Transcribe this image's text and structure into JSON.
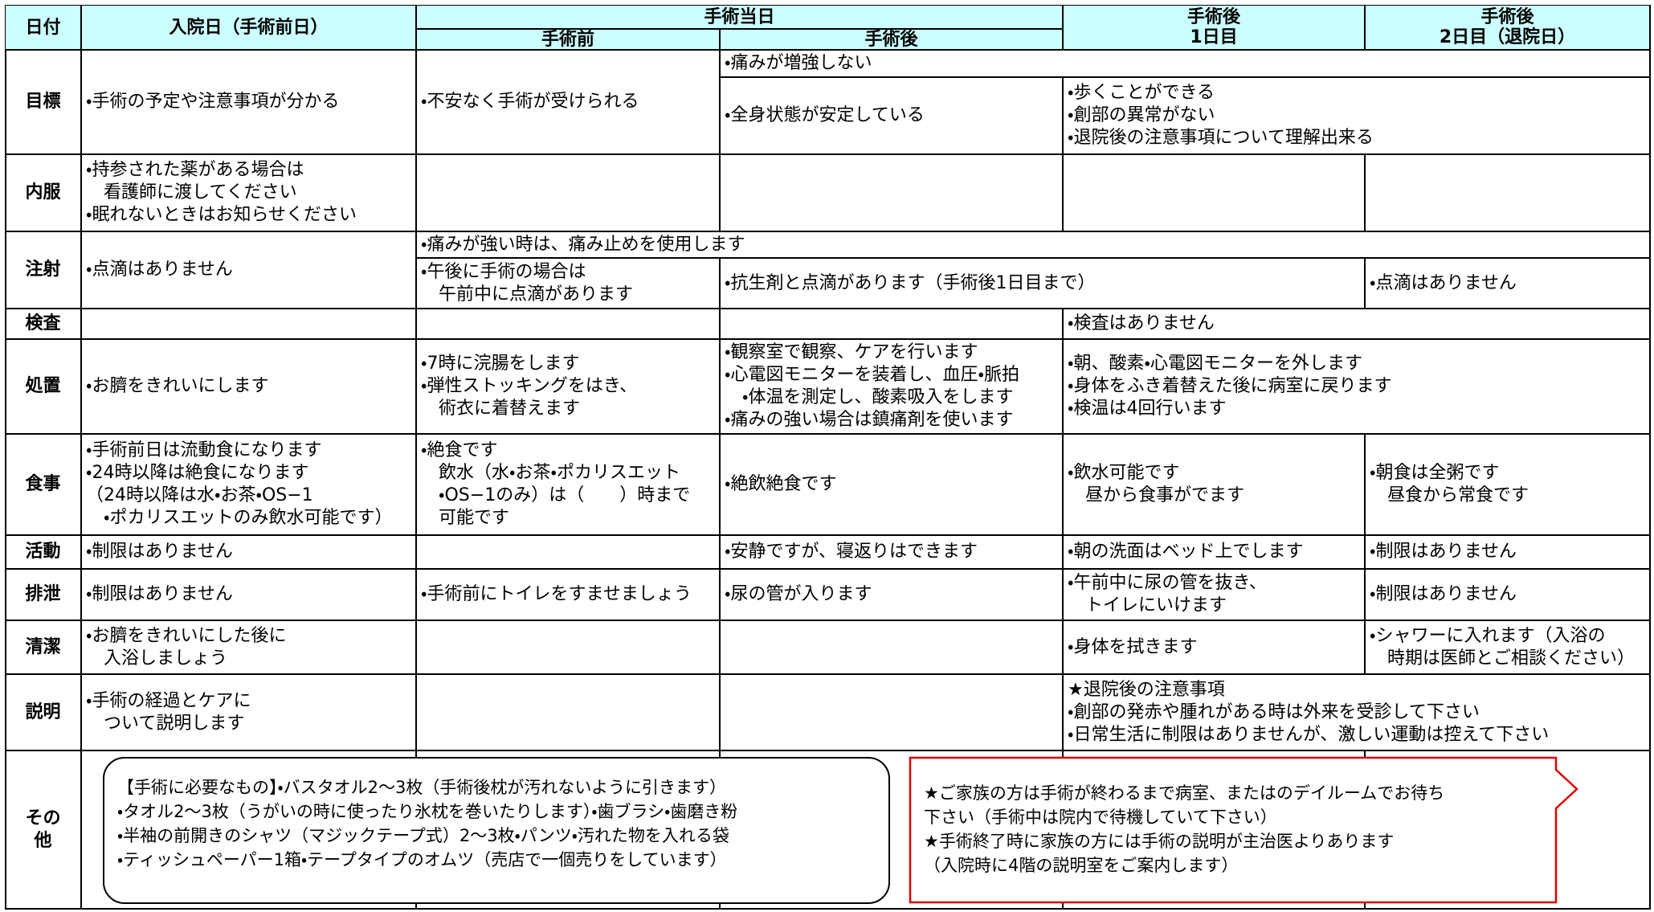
{
  "header": {
    "date": "日付",
    "admission": "入院日（手術前日）",
    "surgery_day": "手術当日",
    "before": "手術前",
    "after": "手術後",
    "post1": "手術後\n1日目",
    "post2": "手術後\n2日目（退院日）"
  },
  "rows": [
    {
      "label": "目標",
      "cells": [
        "・手術の予定や注意事項が分かる",
        "・不安なく手術が受けられる",
        "・痛みが増強しない",
        "・全身状態が安定している",
        "・歩くことができる\n・創部の異常がない\n・退院後の注意事項について理解出来る"
      ]
    },
    {
      "label": "内服",
      "cells": [
        "・持参された薬がある場合は\n　看護師に渡してください\n・眠れないときはお知らせください"
      ]
    },
    {
      "label": "注射",
      "cells": [
        "・点滴はありません",
        "・痛みが強い時は、痛み止めを使用します",
        "・午後に手術の場合は\n　午前中に点滴があります",
        "・抗生剤と点滴があります（手術後1日目まで）",
        "・点滴はありません"
      ]
    },
    {
      "label": "検査",
      "cells": [
        "・検査はありません"
      ]
    },
    {
      "label": "処置",
      "cells": [
        "・お臍をきれいにします",
        "・7時に浣腸をします\n・弾性ストッキングをはき、\n　術衣に着替えます",
        "・観察室で観察、ケアを行います\n・心電図モニターを装着し、血圧・脈拍\n　・体温を測定し、酸素吸入をします\n・痛みの強い場合は鎮痛剤を使います",
        "・朝、酸素・心電図モニターを外します\n・身体をふき着替えた後に病室に戻ります\n・検温は4回行います"
      ]
    },
    {
      "label": "食事",
      "cells": [
        "・手術前日は流動食になります\n・24時以降は絶食になります\n（24時以降は水・お茶・OS−1\n　・ポカリスエットのみ飲水可能です）",
        "・絶食です\n　飲水（水・お茶・ポカリスエット\n　・OS−1のみ）は（　　）時まで\n　可能です",
        "・絶飲絶食です",
        "・飲水可能です\n　昼から食事がでます",
        "・朝食は全粥です\n　昼食から常食です"
      ]
    },
    {
      "label": "活動",
      "cells": [
        "・制限はありません",
        "・安静ですが、寝返りはできます",
        "・朝の洗面はベッド上でします",
        "・制限はありません"
      ]
    },
    {
      "label": "排泄",
      "cells": [
        "・制限はありません",
        "・手術前にトイレをすませましょう",
        "・尿の管が入ります",
        "・午前中に尿の管を抜き、\n　トイレにいけます",
        "・制限はありません"
      ]
    },
    {
      "label": "清潔",
      "cells": [
        "・お臍をきれいにした後に\n　入浴しましょう",
        "・身体を拭きます",
        "・シャワーに入れます（入浴の\n　時期は医師とご相談ください）"
      ]
    },
    {
      "label": "説明",
      "cells": [
        "・手術の経過とケアに\n　ついて説明します",
        "★退院後の注意事項\n・創部の発赤や腫れがある時は外来を受診して下さい\n・日常生活に制限はありませんが、激しい運動は控えて下さい"
      ]
    },
    {
      "label": "その\n他",
      "cells": []
    }
  ],
  "notes": {
    "items": "【手術に必要なもの】・バスタオル2〜3枚（手術後枕が汚れないように引きます）\n・タオル2〜3枚（うがいの時に使ったり氷枕を巻いたりします）・歯ブラシ・歯磨き粉\n・半袖の前開きのシャツ（マジックテープ式）2〜3枚・パンツ・汚れた物を入れる袋\n・ティッシュペーパー1箱・テープタイプのオムツ（売店で一個売りをしています）",
    "family": "★ご家族の方は手術が終わるまで病室、またはのデイルームでお待ち\n下さい（手術中は院内で待機していて下さい）\n★手術終了時に家族の方には手術の説明が主治医よりあります\n（入院時に4階の説明室をご案内します）"
  }
}
